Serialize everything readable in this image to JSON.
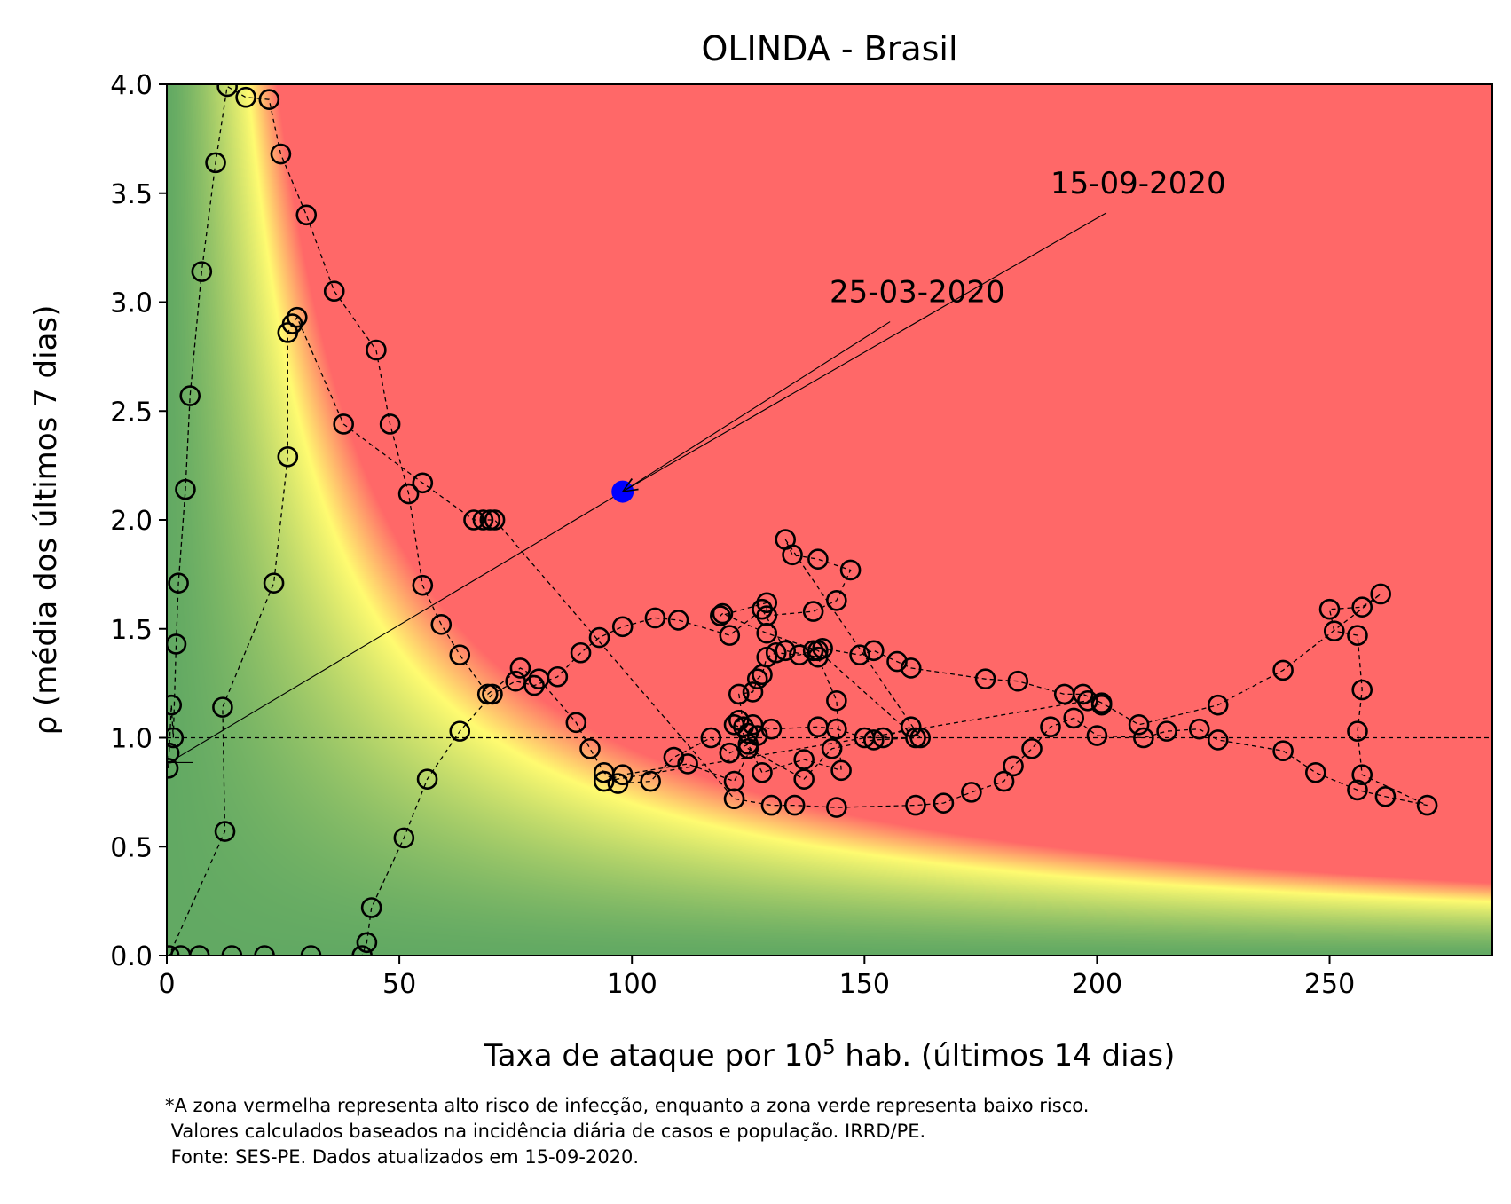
{
  "chart_data": {
    "type": "scatter",
    "title": "OLINDA - Brasil",
    "xlabel": {
      "prefix": "Taxa de ataque por 10",
      "sup": "5",
      "suffix": " hab. (últimos 14 dias)"
    },
    "ylabel": "ρ (média dos últimos 7 dias)",
    "xlim": [
      0,
      285
    ],
    "ylim": [
      0,
      4
    ],
    "xticks": [
      0,
      50,
      100,
      150,
      200,
      250
    ],
    "yticks": [
      0.0,
      0.5,
      1.0,
      1.5,
      2.0,
      2.5,
      3.0,
      3.5,
      4.0
    ],
    "ytick_labels": [
      "0.0",
      "0.5",
      "1.0",
      "1.5",
      "2.0",
      "2.5",
      "3.0",
      "3.5",
      "4.0"
    ],
    "reference_line_y": 1.0,
    "background": "risk gradient: green (low) → yellow → red (high)",
    "colors": {
      "low": "#62a963",
      "mid": "#fffb70",
      "high": "#ff6868",
      "current": "#0000ff",
      "markers": "#000000"
    },
    "points": [
      [
        0.3,
        0.86
      ],
      [
        0.5,
        0.93
      ],
      [
        1.0,
        1.15
      ],
      [
        1.4,
        1.0
      ],
      [
        2.0,
        1.43
      ],
      [
        2.5,
        1.71
      ],
      [
        4.0,
        2.14
      ],
      [
        5.0,
        2.57
      ],
      [
        7.5,
        3.14
      ],
      [
        10.5,
        3.64
      ],
      [
        13.0,
        3.99
      ],
      [
        17.0,
        3.94
      ],
      [
        22.0,
        3.93
      ],
      [
        24.5,
        3.68
      ],
      [
        30.0,
        3.4
      ],
      [
        36.0,
        3.05
      ],
      [
        45.0,
        2.78
      ],
      [
        48.0,
        2.44
      ],
      [
        52.0,
        2.12
      ],
      [
        55.0,
        1.7
      ],
      [
        59.0,
        1.52
      ],
      [
        63.0,
        1.38
      ],
      [
        69.0,
        1.2
      ],
      [
        76.0,
        1.32
      ],
      [
        80.0,
        1.27
      ],
      [
        88.0,
        1.07
      ],
      [
        91.0,
        0.95
      ],
      [
        94.0,
        0.84
      ],
      [
        97.0,
        0.79
      ],
      [
        104.0,
        0.8
      ],
      [
        109.0,
        0.91
      ],
      [
        117.0,
        1.0
      ],
      [
        121.0,
        0.93
      ],
      [
        125.0,
        0.97
      ],
      [
        128.0,
        0.84
      ],
      [
        137.0,
        0.9
      ],
      [
        145.0,
        0.85
      ],
      [
        144.0,
        1.17
      ],
      [
        140.0,
        1.37
      ],
      [
        133.0,
        1.4
      ],
      [
        128.0,
        1.59
      ],
      [
        121.0,
        1.47
      ],
      [
        110.0,
        1.54
      ],
      [
        105.0,
        1.55
      ],
      [
        98.0,
        1.51
      ],
      [
        93.0,
        1.46
      ],
      [
        89.0,
        1.39
      ],
      [
        84.0,
        1.28
      ],
      [
        79.0,
        1.24
      ],
      [
        75.0,
        1.26
      ],
      [
        70.0,
        1.2
      ],
      [
        63.0,
        1.03
      ],
      [
        56.0,
        0.81
      ],
      [
        51.0,
        0.54
      ],
      [
        44.0,
        0.22
      ],
      [
        43.0,
        0.06
      ],
      [
        42.0,
        0.0
      ],
      [
        31.0,
        0.0
      ],
      [
        21.0,
        0.0
      ],
      [
        14.0,
        0.0
      ],
      [
        7.0,
        0.0
      ],
      [
        3.0,
        0.0
      ],
      [
        0.5,
        0.0
      ],
      [
        12.5,
        0.57
      ],
      [
        12.0,
        1.14
      ],
      [
        23.0,
        1.71
      ],
      [
        26.0,
        2.29
      ],
      [
        26.0,
        2.86
      ],
      [
        27.0,
        2.9
      ],
      [
        28.0,
        2.93
      ],
      [
        38.0,
        2.44
      ],
      [
        55.0,
        2.17
      ],
      [
        66.0,
        2.0
      ],
      [
        68.0,
        2.0
      ],
      [
        69.5,
        2.0
      ],
      [
        70.5,
        2.0
      ],
      [
        122.0,
        0.72
      ],
      [
        130.0,
        0.69
      ],
      [
        135.0,
        0.69
      ],
      [
        144.0,
        0.68
      ],
      [
        161.0,
        0.69
      ],
      [
        167.0,
        0.7
      ],
      [
        173.0,
        0.75
      ],
      [
        180.0,
        0.8
      ],
      [
        182.0,
        0.87
      ],
      [
        186.0,
        0.95
      ],
      [
        190.0,
        1.05
      ],
      [
        195.0,
        1.09
      ],
      [
        200.0,
        1.01
      ],
      [
        210.0,
        1.0
      ],
      [
        215.0,
        1.03
      ],
      [
        222.0,
        1.04
      ],
      [
        226.0,
        0.99
      ],
      [
        240.0,
        0.94
      ],
      [
        247.0,
        0.84
      ],
      [
        256.0,
        0.76
      ],
      [
        262.0,
        0.73
      ],
      [
        271.0,
        0.69
      ],
      [
        257.0,
        0.83
      ],
      [
        256.0,
        1.03
      ],
      [
        257.0,
        1.22
      ],
      [
        256.0,
        1.47
      ],
      [
        251.0,
        1.49
      ],
      [
        250.0,
        1.59
      ],
      [
        257.0,
        1.6
      ],
      [
        261.0,
        1.66
      ],
      [
        240.0,
        1.31
      ],
      [
        226.0,
        1.15
      ],
      [
        209.0,
        1.06
      ],
      [
        201.0,
        1.16
      ],
      [
        197.0,
        1.2
      ],
      [
        193.0,
        1.2
      ],
      [
        183.0,
        1.26
      ],
      [
        176.0,
        1.27
      ],
      [
        160.0,
        1.32
      ],
      [
        157.0,
        1.35
      ],
      [
        152.0,
        1.4
      ],
      [
        149.0,
        1.38
      ],
      [
        141.0,
        1.41
      ],
      [
        139.0,
        1.4
      ],
      [
        136.0,
        1.38
      ],
      [
        131.0,
        1.39
      ],
      [
        129.0,
        1.37
      ],
      [
        128.0,
        1.29
      ],
      [
        127.0,
        1.27
      ],
      [
        126.0,
        1.21
      ],
      [
        123.0,
        1.2
      ],
      [
        124.0,
        1.05
      ],
      [
        125.0,
        1.02
      ],
      [
        126.0,
        1.06
      ],
      [
        130.0,
        1.04
      ],
      [
        140.0,
        1.05
      ],
      [
        144.0,
        1.04
      ],
      [
        150.0,
        1.0
      ],
      [
        154.0,
        1.0
      ],
      [
        160.0,
        1.05
      ],
      [
        162.0,
        1.0
      ],
      [
        133.0,
        1.91
      ],
      [
        134.5,
        1.84
      ],
      [
        140.0,
        1.82
      ],
      [
        147.0,
        1.77
      ],
      [
        144.0,
        1.63
      ],
      [
        139.0,
        1.58
      ],
      [
        129.0,
        1.56
      ],
      [
        129.0,
        1.62
      ],
      [
        119.0,
        1.56
      ],
      [
        119.5,
        1.57
      ],
      [
        129.0,
        1.48
      ],
      [
        140.0,
        1.4
      ],
      [
        161.0,
        1.0
      ],
      [
        152.0,
        0.99
      ],
      [
        143.0,
        0.95
      ],
      [
        137.0,
        0.81
      ],
      [
        125.0,
        0.95
      ],
      [
        123.0,
        1.08
      ],
      [
        122.0,
        1.06
      ],
      [
        127.0,
        1.01
      ],
      [
        122.0,
        0.8
      ],
      [
        112.0,
        0.88
      ],
      [
        98.0,
        0.83
      ],
      [
        94.0,
        0.8
      ],
      [
        198.0,
        1.17
      ],
      [
        201.0,
        1.15
      ]
    ],
    "current_point": {
      "x": 98.0,
      "y": 2.13
    },
    "annotations": [
      {
        "text": "25-03-2020",
        "text_x": 142.5,
        "text_y": 3.0,
        "arrow_from_x": 155.5,
        "arrow_from_y": 2.91,
        "arrow_to_x": 98.0,
        "arrow_to_y": 2.13
      },
      {
        "text": "15-09-2020",
        "text_x": 190.0,
        "text_y": 3.5,
        "arrow_from_x": 202.0,
        "arrow_from_y": 3.41,
        "arrow_to_x": 98.0,
        "arrow_to_y": 2.13
      }
    ],
    "annotation_line": {
      "x1": 0.0,
      "y1": 0.88,
      "x2": 98.0,
      "y2": 2.13
    }
  },
  "footnote": {
    "line1": "*A zona vermelha representa alto risco de infecção, enquanto a zona verde representa baixo risco.",
    "line2": " Valores calculados baseados na incidência diária de casos e população. IRRD/PE.",
    "line3": " Fonte: SES-PE. Dados atualizados em 15-09-2020."
  }
}
